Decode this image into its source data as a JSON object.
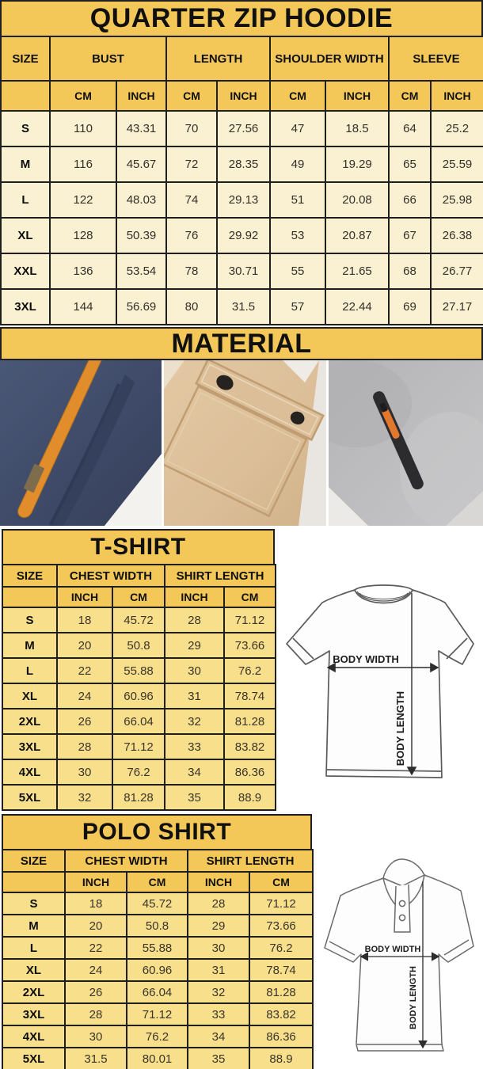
{
  "colors": {
    "gold_header": "#f3c858",
    "cream_cell": "#faf0d2",
    "yellow_cell": "#f7df8c",
    "table_border": "#1f1f1f",
    "navy_fabric": "#3f4b69",
    "orange_strap": "#e28d2c",
    "khaki_fabric": "#dcbf99",
    "gray_fleece": "#bdbdbf"
  },
  "hoodie_chart": {
    "title": "QUARTER ZIP HOODIE",
    "size_header": "SIZE",
    "groups": [
      {
        "label": "BUST"
      },
      {
        "label": "LENGTH"
      },
      {
        "label": "SHOULDER WIDTH"
      },
      {
        "label": "SLEEVE"
      }
    ],
    "units": [
      "CM",
      "INCH",
      "CM",
      "INCH",
      "CM",
      "INCH",
      "CM",
      "INCH"
    ],
    "rows": [
      {
        "size": "S",
        "values": [
          "110",
          "43.31",
          "70",
          "27.56",
          "47",
          "18.5",
          "64",
          "25.2"
        ]
      },
      {
        "size": "M",
        "values": [
          "116",
          "45.67",
          "72",
          "28.35",
          "49",
          "19.29",
          "65",
          "25.59"
        ]
      },
      {
        "size": "L",
        "values": [
          "122",
          "48.03",
          "74",
          "29.13",
          "51",
          "20.08",
          "66",
          "25.98"
        ]
      },
      {
        "size": "XL",
        "values": [
          "128",
          "50.39",
          "76",
          "29.92",
          "53",
          "20.87",
          "67",
          "26.38"
        ]
      },
      {
        "size": "XXL",
        "values": [
          "136",
          "53.54",
          "78",
          "30.71",
          "55",
          "21.65",
          "68",
          "26.77"
        ]
      },
      {
        "size": "3XL",
        "values": [
          "144",
          "56.69",
          "80",
          "31.5",
          "57",
          "22.44",
          "69",
          "27.17"
        ]
      }
    ]
  },
  "material": {
    "title": "MATERIAL",
    "photos": [
      {
        "name": "navy fleece with orange drawstring"
      },
      {
        "name": "khaki cargo pocket with snap buttons"
      },
      {
        "name": "gray heather fleece with zip pocket"
      }
    ]
  },
  "tshirt_chart": {
    "title": "T-SHIRT",
    "size_header": "SIZE",
    "groups": [
      {
        "label": "CHEST WIDTH"
      },
      {
        "label": "SHIRT LENGTH"
      }
    ],
    "units": [
      "INCH",
      "CM",
      "INCH",
      "CM"
    ],
    "rows": [
      {
        "size": "S",
        "values": [
          "18",
          "45.72",
          "28",
          "71.12"
        ]
      },
      {
        "size": "M",
        "values": [
          "20",
          "50.8",
          "29",
          "73.66"
        ]
      },
      {
        "size": "L",
        "values": [
          "22",
          "55.88",
          "30",
          "76.2"
        ]
      },
      {
        "size": "XL",
        "values": [
          "24",
          "60.96",
          "31",
          "78.74"
        ]
      },
      {
        "size": "2XL",
        "values": [
          "26",
          "66.04",
          "32",
          "81.28"
        ]
      },
      {
        "size": "3XL",
        "values": [
          "28",
          "71.12",
          "33",
          "83.82"
        ]
      },
      {
        "size": "4XL",
        "values": [
          "30",
          "76.2",
          "34",
          "86.36"
        ]
      },
      {
        "size": "5XL",
        "values": [
          "32",
          "81.28",
          "35",
          "88.9"
        ]
      }
    ]
  },
  "polo_chart": {
    "title": "POLO SHIRT",
    "size_header": "SIZE",
    "groups": [
      {
        "label": "CHEST WIDTH"
      },
      {
        "label": "SHIRT LENGTH"
      }
    ],
    "units": [
      "INCH",
      "CM",
      "INCH",
      "CM"
    ],
    "rows": [
      {
        "size": "S",
        "values": [
          "18",
          "45.72",
          "28",
          "71.12"
        ]
      },
      {
        "size": "M",
        "values": [
          "20",
          "50.8",
          "29",
          "73.66"
        ]
      },
      {
        "size": "L",
        "values": [
          "22",
          "55.88",
          "30",
          "76.2"
        ]
      },
      {
        "size": "XL",
        "values": [
          "24",
          "60.96",
          "31",
          "78.74"
        ]
      },
      {
        "size": "2XL",
        "values": [
          "26",
          "66.04",
          "32",
          "81.28"
        ]
      },
      {
        "size": "3XL",
        "values": [
          "28",
          "71.12",
          "33",
          "83.82"
        ]
      },
      {
        "size": "4XL",
        "values": [
          "30",
          "76.2",
          "34",
          "86.36"
        ]
      },
      {
        "size": "5XL",
        "values": [
          "31.5",
          "80.01",
          "35",
          "88.9"
        ]
      }
    ]
  },
  "diagram": {
    "body_width_label": "BODY WIDTH",
    "body_length_label": "BODY LENGTH"
  }
}
